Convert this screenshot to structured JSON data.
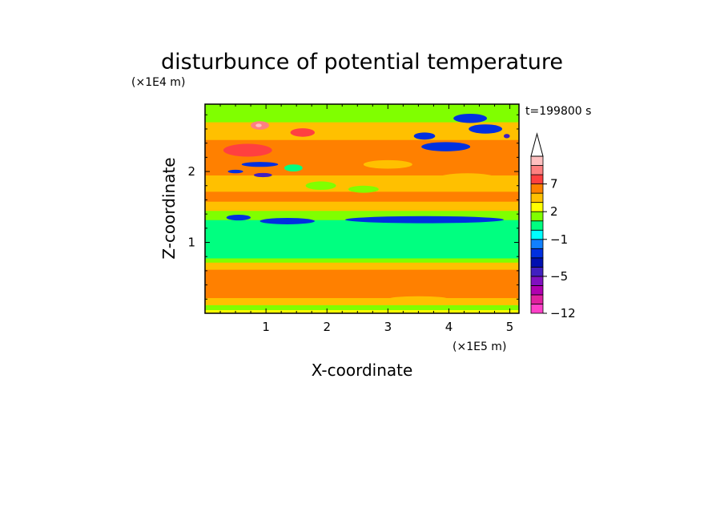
{
  "chart_data": {
    "type": "heatmap",
    "title": "disturbunce of potential temperature",
    "xlabel": "X-coordinate",
    "ylabel": "Z-coordinate",
    "x_unit": "(×1E5 m)",
    "y_unit": "(×1E4 m)",
    "time_label": "t=199800 s",
    "xlim": [
      0,
      5.15
    ],
    "ylim": [
      0,
      2.95
    ],
    "x_ticks": [
      "1",
      "2",
      "3",
      "4",
      "5"
    ],
    "x_tick_values": [
      1,
      2,
      3,
      4,
      5
    ],
    "y_ticks": [
      "1",
      "2"
    ],
    "y_tick_values": [
      1,
      2
    ],
    "colorbar": {
      "tick_labels": [
        "7",
        "2",
        "−1",
        "−5",
        "−12"
      ],
      "tick_levels": [
        7,
        2,
        -1,
        -5,
        -12
      ],
      "levels": [
        -12,
        -10,
        -8,
        -6,
        -5,
        -4,
        -3,
        -2,
        -1,
        0,
        1,
        2,
        3,
        5,
        7,
        9,
        11
      ],
      "colors": [
        "#ff40c8",
        "#e020a0",
        "#b000b0",
        "#8010c0",
        "#4020c0",
        "#0010b0",
        "#0030e0",
        "#1080ff",
        "#00ffff",
        "#00ff80",
        "#80ff00",
        "#ffff00",
        "#ffc000",
        "#ff8000",
        "#ff4040",
        "#ff8080",
        "#ffc0c0",
        "#ffffff"
      ]
    },
    "bands": [
      {
        "z_from": 0.0,
        "z_to": 0.05,
        "value": 1.5
      },
      {
        "z_from": 0.05,
        "z_to": 0.12,
        "value": 0.5
      },
      {
        "z_from": 0.12,
        "z_to": 0.22,
        "value": 2.0
      },
      {
        "z_from": 0.22,
        "z_to": 0.62,
        "value": 3.5
      },
      {
        "z_from": 0.62,
        "z_to": 0.72,
        "value": 2.0
      },
      {
        "z_from": 0.72,
        "z_to": 0.78,
        "value": 0.5
      },
      {
        "z_from": 0.78,
        "z_to": 1.05,
        "value": -0.5
      },
      {
        "z_from": 1.05,
        "z_to": 1.2,
        "value": -0.5
      },
      {
        "z_from": 1.2,
        "z_to": 1.32,
        "value": -0.5
      },
      {
        "z_from": 1.32,
        "z_to": 1.45,
        "value": 0.5
      },
      {
        "z_from": 1.45,
        "z_to": 1.58,
        "value": 2.5
      },
      {
        "z_from": 1.58,
        "z_to": 1.72,
        "value": 3.5
      },
      {
        "z_from": 1.72,
        "z_to": 1.95,
        "value": 2.5
      },
      {
        "z_from": 1.95,
        "z_to": 2.05,
        "value": 3.5
      },
      {
        "z_from": 2.05,
        "z_to": 2.2,
        "value": 4.0
      },
      {
        "z_from": 2.2,
        "z_to": 2.45,
        "value": 3.5
      },
      {
        "z_from": 2.45,
        "z_to": 2.7,
        "value": 2.5
      },
      {
        "z_from": 2.7,
        "z_to": 2.95,
        "value": 0.5
      }
    ],
    "features": [
      {
        "x": 3.6,
        "z": 1.32,
        "w": 2.6,
        "h": 0.1,
        "value": -3.5
      },
      {
        "x": 1.35,
        "z": 1.3,
        "w": 0.9,
        "h": 0.09,
        "value": -3.5
      },
      {
        "x": 0.55,
        "z": 1.35,
        "w": 0.4,
        "h": 0.08,
        "value": -3.5
      },
      {
        "x": 2.6,
        "z": 1.12,
        "w": 1.2,
        "h": 0.08,
        "value": -0.5
      },
      {
        "x": 0.7,
        "z": 2.3,
        "w": 0.8,
        "h": 0.18,
        "value": 5.0
      },
      {
        "x": 0.9,
        "z": 2.65,
        "w": 0.3,
        "h": 0.12,
        "value": 8.0
      },
      {
        "x": 0.88,
        "z": 2.65,
        "w": 0.1,
        "h": 0.05,
        "value": 10.0
      },
      {
        "x": 1.6,
        "z": 2.55,
        "w": 0.4,
        "h": 0.12,
        "value": 5.0
      },
      {
        "x": 0.9,
        "z": 2.1,
        "w": 0.6,
        "h": 0.07,
        "value": -3.5
      },
      {
        "x": 0.5,
        "z": 2.0,
        "w": 0.25,
        "h": 0.05,
        "value": -3.5
      },
      {
        "x": 0.95,
        "z": 1.95,
        "w": 0.3,
        "h": 0.06,
        "value": -5.5
      },
      {
        "x": 1.45,
        "z": 2.05,
        "w": 0.3,
        "h": 0.1,
        "value": -0.5
      },
      {
        "x": 1.9,
        "z": 1.8,
        "w": 0.5,
        "h": 0.12,
        "value": 0.5
      },
      {
        "x": 2.6,
        "z": 1.75,
        "w": 0.5,
        "h": 0.1,
        "value": 0.5
      },
      {
        "x": 4.35,
        "z": 2.75,
        "w": 0.55,
        "h": 0.13,
        "value": -3.5
      },
      {
        "x": 4.6,
        "z": 2.6,
        "w": 0.55,
        "h": 0.13,
        "value": -3.5
      },
      {
        "x": 3.95,
        "z": 2.35,
        "w": 0.8,
        "h": 0.13,
        "value": -3.5
      },
      {
        "x": 3.6,
        "z": 2.5,
        "w": 0.35,
        "h": 0.1,
        "value": -3.5
      },
      {
        "x": 4.95,
        "z": 2.5,
        "w": 0.1,
        "h": 0.06,
        "value": -5.5
      },
      {
        "x": 3.3,
        "z": 2.75,
        "w": 0.5,
        "h": 0.1,
        "value": 0.5
      },
      {
        "x": 3.0,
        "z": 2.1,
        "w": 0.8,
        "h": 0.12,
        "value": 2.5
      },
      {
        "x": 4.3,
        "z": 1.9,
        "w": 1.0,
        "h": 0.15,
        "value": 2.0
      },
      {
        "x": 0.6,
        "z": 0.45,
        "w": 0.5,
        "h": 0.12,
        "value": 4.0
      },
      {
        "x": 2.3,
        "z": 0.45,
        "w": 0.6,
        "h": 0.1,
        "value": 4.0
      },
      {
        "x": 4.2,
        "z": 0.4,
        "w": 0.8,
        "h": 0.12,
        "value": 4.0
      },
      {
        "x": 3.5,
        "z": 0.2,
        "w": 1.0,
        "h": 0.08,
        "value": 2.5
      }
    ]
  }
}
